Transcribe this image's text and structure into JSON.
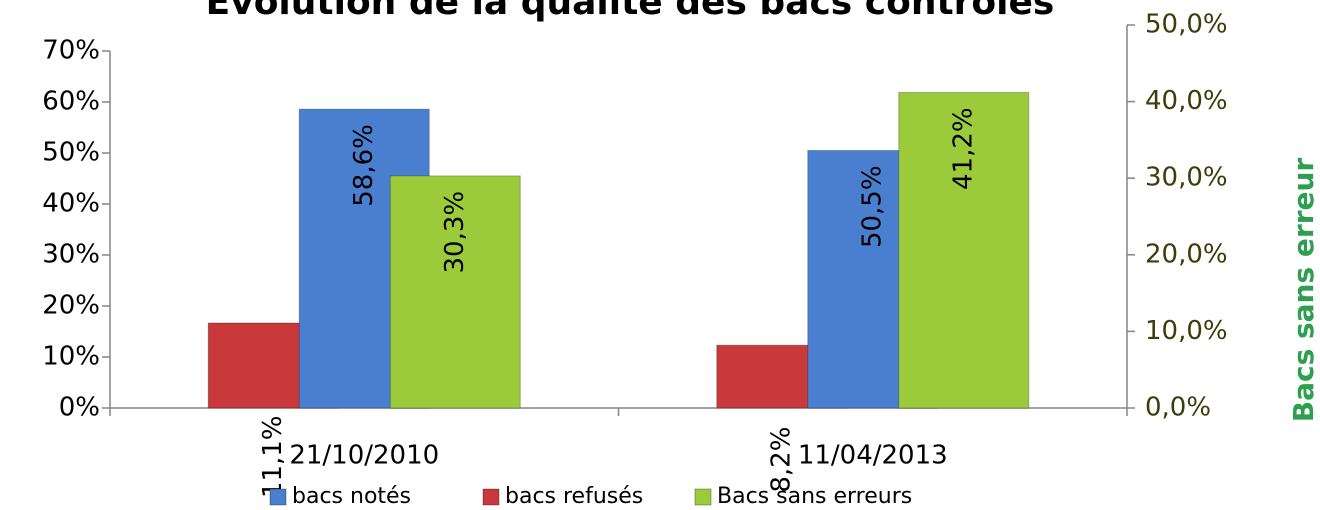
{
  "chart_data": {
    "type": "bar",
    "title": "Évolution de la qualité des bacs contrôlés",
    "y2_label": "Bacs sans erreur",
    "categories": [
      "21/10/2010",
      "11/04/2013"
    ],
    "series": [
      {
        "name": "bacs notés",
        "color": "#4a7fcf",
        "values": [
          58.6,
          50.5
        ],
        "value_labels": [
          "58,6%",
          "50,5%"
        ]
      },
      {
        "name": "bacs refusés",
        "color": "#c9383a",
        "values": [
          11.1,
          8.2
        ],
        "value_labels": [
          "11,1%",
          "8,2%"
        ],
        "axis": "y2"
      },
      {
        "name": "Bacs sans erreurs",
        "color": "#9bcb3b",
        "values": [
          30.3,
          41.2
        ],
        "value_labels": [
          "30,3%",
          "41,2%"
        ],
        "axis": "y2"
      }
    ],
    "ylim": [
      0,
      70
    ],
    "yticks": [
      {
        "value": 0,
        "label": "0%"
      },
      {
        "value": 10,
        "label": "10%"
      },
      {
        "value": 20,
        "label": "20%"
      },
      {
        "value": 30,
        "label": "30%"
      },
      {
        "value": 40,
        "label": "40%"
      },
      {
        "value": 50,
        "label": "50%"
      },
      {
        "value": 60,
        "label": "60%"
      },
      {
        "value": 70,
        "label": "70%"
      }
    ],
    "y2lim": [
      0,
      50
    ],
    "y2ticks": [
      {
        "value": 0,
        "label": "0,0%"
      },
      {
        "value": 10,
        "label": "10,0%"
      },
      {
        "value": 20,
        "label": "20,0%"
      },
      {
        "value": 30,
        "label": "30,0%"
      },
      {
        "value": 40,
        "label": "40,0%"
      },
      {
        "value": 50,
        "label": "50,0%"
      }
    ],
    "legend": "bottom",
    "grid": false
  }
}
